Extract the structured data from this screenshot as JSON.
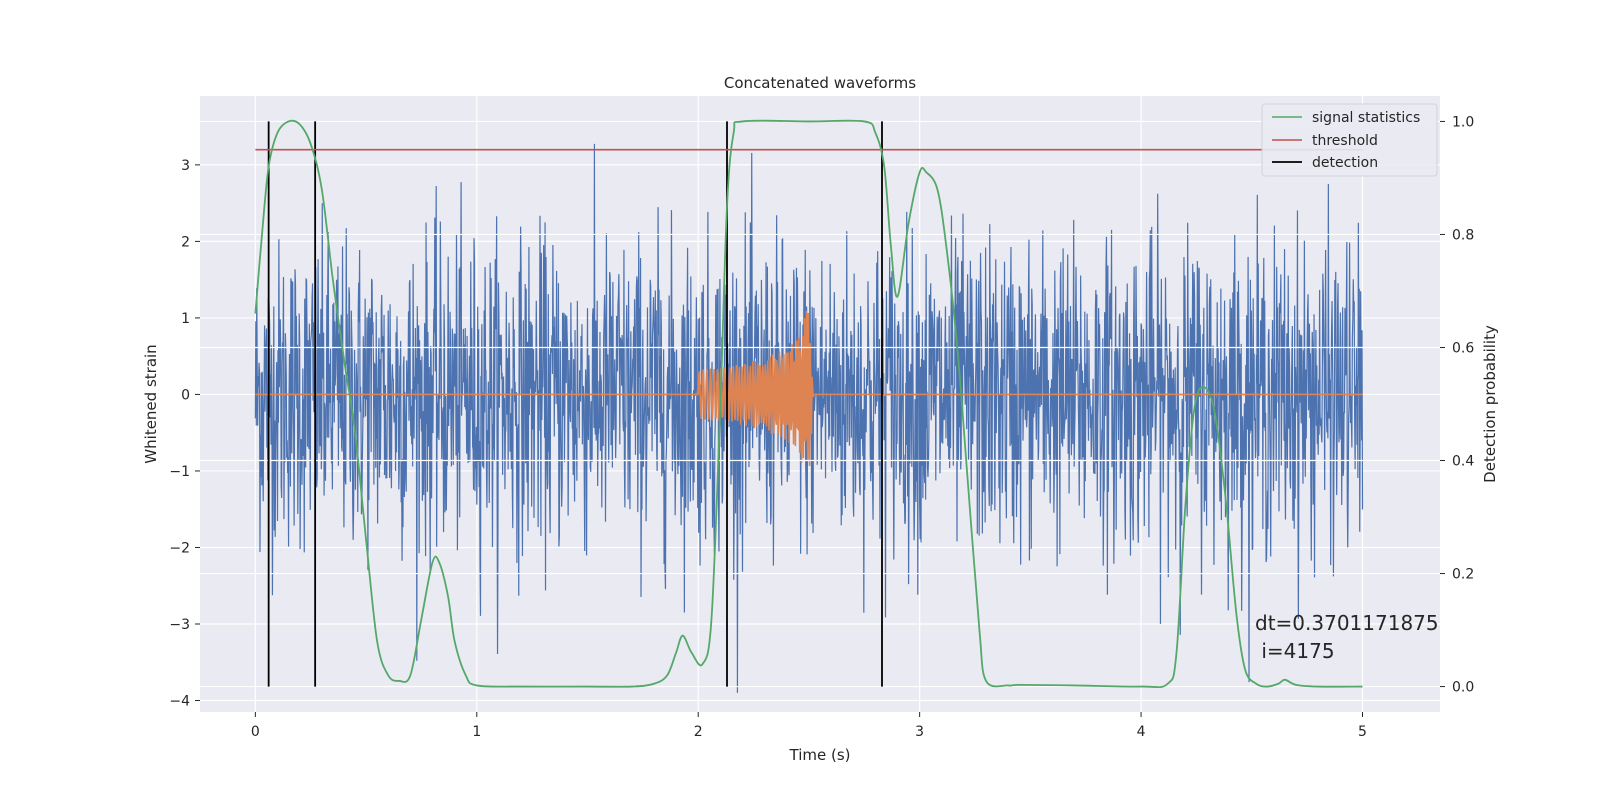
{
  "chart_data": {
    "type": "line",
    "title": "Concatenated waveforms",
    "xlabel": "Time (s)",
    "ylabel": "Whitened strain",
    "y2label": "Detection probability",
    "xlim": [
      -0.25,
      5.35
    ],
    "ylim": [
      -4.15,
      3.9
    ],
    "y2lim": [
      -0.045,
      1.045
    ],
    "xticks": [
      "0",
      "1",
      "2",
      "3",
      "4",
      "5"
    ],
    "yticks": [
      "−4",
      "−3",
      "−2",
      "−1",
      "0",
      "1",
      "2",
      "3"
    ],
    "y2ticks": [
      "0.0",
      "0.2",
      "0.4",
      "0.6",
      "0.8",
      "1.0"
    ],
    "grid": true,
    "legend_position": "top-right",
    "legend": [
      "signal statistics",
      "threshold",
      "detection"
    ],
    "series": [
      {
        "name": "whitened strain noise",
        "color": "#4c72b0",
        "x_range": [
          0,
          5
        ],
        "typical_amplitude": 1.0,
        "peak_range": [
          -3.9,
          3.55
        ]
      },
      {
        "name": "injected waveform",
        "color": "#dd8452",
        "x": [
          0,
          1.99,
          2.0,
          2.1,
          2.2,
          2.3,
          2.4,
          2.45,
          2.5,
          2.52,
          5.0
        ],
        "envelope": [
          0,
          0,
          0.32,
          0.35,
          0.4,
          0.48,
          0.6,
          0.75,
          1.2,
          0,
          0
        ]
      },
      {
        "name": "signal statistics",
        "color": "#55a868",
        "axis": "right",
        "x": [
          0.0,
          0.03,
          0.06,
          0.1,
          0.15,
          0.2,
          0.25,
          0.3,
          0.35,
          0.4,
          0.45,
          0.5,
          0.55,
          0.6,
          0.65,
          0.7,
          0.75,
          0.8,
          0.83,
          0.87,
          0.9,
          0.95,
          1.0,
          1.2,
          1.5,
          1.7,
          1.8,
          1.86,
          1.9,
          1.93,
          1.97,
          2.02,
          2.06,
          2.1,
          2.13,
          2.16,
          2.2,
          2.5,
          2.75,
          2.8,
          2.84,
          2.87,
          2.9,
          2.95,
          3.0,
          3.03,
          3.08,
          3.12,
          3.17,
          3.22,
          3.27,
          3.3,
          3.4,
          3.45,
          3.7,
          4.0,
          4.12,
          4.16,
          4.2,
          4.24,
          4.28,
          4.33,
          4.38,
          4.43,
          4.47,
          4.52,
          4.57,
          4.62,
          4.65,
          4.7,
          4.8,
          5.0
        ],
        "y": [
          0.66,
          0.8,
          0.92,
          0.98,
          1.0,
          0.995,
          0.96,
          0.88,
          0.72,
          0.58,
          0.45,
          0.26,
          0.08,
          0.02,
          0.01,
          0.02,
          0.12,
          0.22,
          0.22,
          0.16,
          0.08,
          0.02,
          0.002,
          0.0,
          0.0,
          0.0,
          0.005,
          0.02,
          0.06,
          0.09,
          0.06,
          0.04,
          0.12,
          0.5,
          0.85,
          0.98,
          1.0,
          1.0,
          1.0,
          0.98,
          0.92,
          0.78,
          0.69,
          0.82,
          0.91,
          0.91,
          0.88,
          0.78,
          0.6,
          0.35,
          0.1,
          0.01,
          0.002,
          0.003,
          0.002,
          0.0,
          0.005,
          0.06,
          0.32,
          0.49,
          0.53,
          0.49,
          0.34,
          0.13,
          0.03,
          0.005,
          0.0,
          0.005,
          0.012,
          0.003,
          0.0,
          0.0
        ]
      },
      {
        "name": "threshold",
        "color": "#c44e52",
        "axis": "right",
        "x": [
          0,
          5
        ],
        "y": [
          0.95,
          0.95
        ]
      }
    ],
    "detections": {
      "name": "detection",
      "color": "#000000",
      "x": [
        0.06,
        0.27,
        2.13,
        2.83
      ],
      "y2_range": [
        0.0,
        1.0
      ]
    },
    "annotation": {
      "line1": "dt=0.3701171875",
      "line2": " i=4175"
    }
  }
}
